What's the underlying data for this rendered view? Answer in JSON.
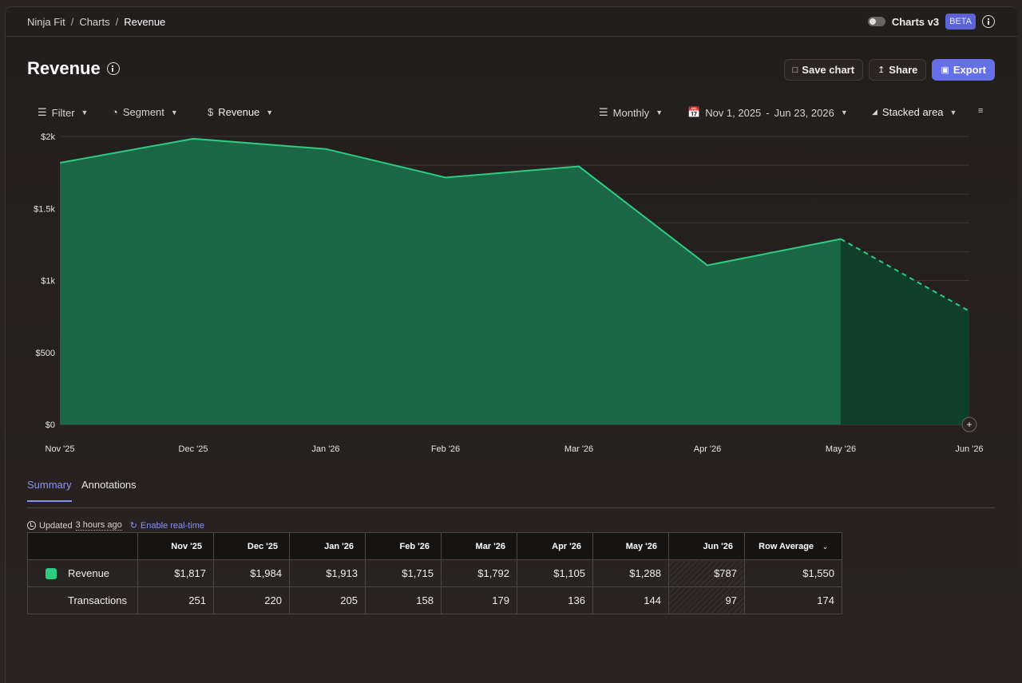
{
  "breadcrumb": {
    "items": [
      "Ninja Fit",
      "Charts",
      "Revenue"
    ]
  },
  "header": {
    "charts_v3_label": "Charts v3",
    "beta_label": "BETA"
  },
  "page": {
    "title": "Revenue"
  },
  "actions": {
    "save_label": "Save chart",
    "share_label": "Share",
    "export_label": "Export"
  },
  "controls": {
    "filter": "Filter",
    "segment": "Segment",
    "metric": "Revenue",
    "interval": "Monthly",
    "date_start": "Nov 1, 2025",
    "date_sep": "-",
    "date_end": "Jun 23, 2026",
    "chart_type": "Stacked area"
  },
  "chart_data": {
    "type": "area",
    "x": [
      "Nov '25",
      "Dec '25",
      "Jan '26",
      "Feb '26",
      "Mar '26",
      "Apr '26",
      "May '26",
      "Jun '26"
    ],
    "y_tick_labels": [
      "$0",
      "$500",
      "$1k",
      "$1.5k",
      "$2k"
    ],
    "ylim": [
      0,
      2000
    ],
    "series": [
      {
        "name": "Revenue",
        "values": [
          1817,
          1984,
          1913,
          1715,
          1792,
          1105,
          1288,
          787
        ],
        "color": "#2ecc80"
      }
    ],
    "partial_from_index": 6,
    "grid": true
  },
  "tabs": {
    "summary": "Summary",
    "annotations": "Annotations"
  },
  "status": {
    "updated_prefix": "Updated",
    "updated_time": "3 hours ago",
    "realtime_label": "Enable real-time"
  },
  "table": {
    "columns": [
      "Nov '25",
      "Dec '25",
      "Jan '26",
      "Feb '26",
      "Mar '26",
      "Apr '26",
      "May '26",
      "Jun '26"
    ],
    "avg_header": "Row Average",
    "rows": [
      {
        "label": "Revenue",
        "values": [
          "$1,817",
          "$1,984",
          "$1,913",
          "$1,715",
          "$1,792",
          "$1,105",
          "$1,288",
          "$787"
        ],
        "avg": "$1,550"
      },
      {
        "label": "Transactions",
        "values": [
          "251",
          "220",
          "205",
          "158",
          "179",
          "136",
          "144",
          "97"
        ],
        "avg": "174"
      }
    ]
  }
}
